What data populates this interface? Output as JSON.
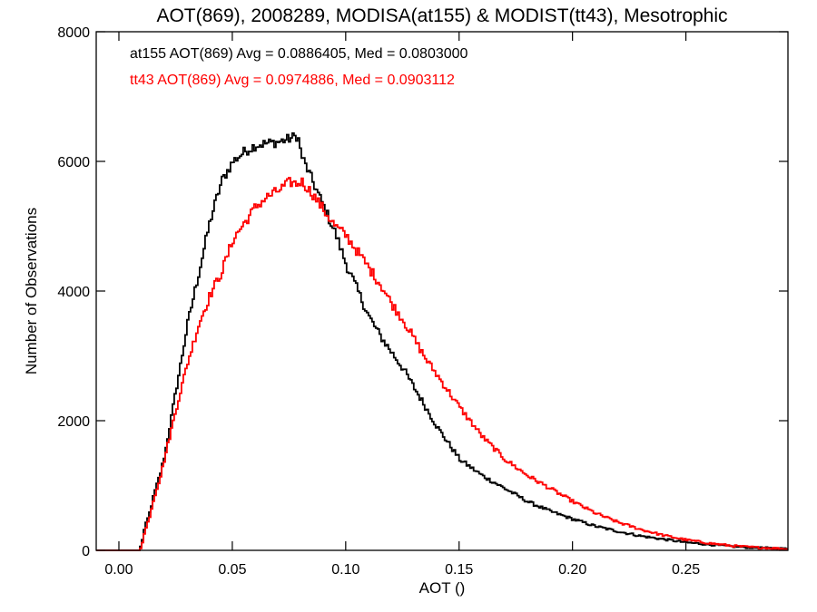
{
  "chart_data": {
    "type": "line",
    "title": "AOT(869), 2008289, MODISA(at155) & MODIST(tt43), Mesotrophic",
    "xlabel": "AOT ()",
    "ylabel": "Number of Observations",
    "xlim": [
      -0.01,
      0.295
    ],
    "ylim": [
      0,
      8000
    ],
    "x_ticks": [
      0.0,
      0.05,
      0.1,
      0.15,
      0.2,
      0.25
    ],
    "x_tick_labels": [
      "0.00",
      "0.05",
      "0.10",
      "0.15",
      "0.20",
      "0.25"
    ],
    "y_ticks": [
      0,
      2000,
      4000,
      6000,
      8000
    ],
    "y_tick_labels": [
      "0",
      "2000",
      "4000",
      "6000",
      "8000"
    ],
    "grid": false,
    "annotations": [
      {
        "text": "at155 AOT(869) Avg = 0.0886405, Med = 0.0803000",
        "color": "#000000"
      },
      {
        "text": "tt43 AOT(869) Avg = 0.0974886, Med = 0.0903112",
        "color": "#ff0000"
      }
    ],
    "series": [
      {
        "color": "#000000",
        "x": [
          -0.01,
          0.0,
          0.005,
          0.0085,
          0.0095,
          0.011,
          0.013,
          0.015,
          0.018,
          0.02,
          0.025,
          0.03,
          0.035,
          0.04,
          0.045,
          0.05,
          0.055,
          0.06,
          0.065,
          0.07,
          0.075,
          0.0785,
          0.08,
          0.085,
          0.09,
          0.095,
          0.1,
          0.105,
          0.11,
          0.115,
          0.12,
          0.125,
          0.13,
          0.135,
          0.14,
          0.145,
          0.15,
          0.16,
          0.17,
          0.18,
          0.19,
          0.2,
          0.21,
          0.22,
          0.23,
          0.24,
          0.25,
          0.26,
          0.27,
          0.28,
          0.29,
          0.295
        ],
        "y": [
          0,
          0,
          0,
          0,
          80,
          350,
          550,
          850,
          1200,
          1500,
          2500,
          3500,
          4300,
          5100,
          5700,
          6000,
          6150,
          6250,
          6280,
          6300,
          6350,
          6400,
          6100,
          5700,
          5300,
          4900,
          4400,
          4000,
          3600,
          3300,
          3050,
          2800,
          2500,
          2200,
          1900,
          1650,
          1400,
          1150,
          950,
          750,
          600,
          480,
          370,
          290,
          220,
          170,
          120,
          90,
          60,
          40,
          30,
          20
        ]
      },
      {
        "color": "#ff0000",
        "x": [
          -0.01,
          0.0,
          0.005,
          0.0085,
          0.0095,
          0.011,
          0.013,
          0.015,
          0.018,
          0.02,
          0.025,
          0.03,
          0.035,
          0.04,
          0.045,
          0.05,
          0.055,
          0.06,
          0.065,
          0.07,
          0.075,
          0.0785,
          0.08,
          0.085,
          0.09,
          0.095,
          0.1,
          0.105,
          0.11,
          0.115,
          0.12,
          0.125,
          0.13,
          0.135,
          0.14,
          0.145,
          0.15,
          0.16,
          0.17,
          0.18,
          0.19,
          0.2,
          0.21,
          0.22,
          0.23,
          0.24,
          0.25,
          0.26,
          0.27,
          0.28,
          0.29,
          0.295
        ],
        "y": [
          0,
          0,
          0,
          0,
          60,
          280,
          500,
          800,
          1150,
          1450,
          2200,
          2900,
          3500,
          3950,
          4300,
          4800,
          5050,
          5300,
          5450,
          5550,
          5680,
          5650,
          5700,
          5500,
          5250,
          5000,
          4850,
          4600,
          4350,
          4100,
          3800,
          3550,
          3250,
          2950,
          2700,
          2450,
          2200,
          1750,
          1400,
          1150,
          950,
          750,
          570,
          430,
          320,
          230,
          160,
          110,
          70,
          45,
          30,
          20
        ]
      }
    ]
  }
}
